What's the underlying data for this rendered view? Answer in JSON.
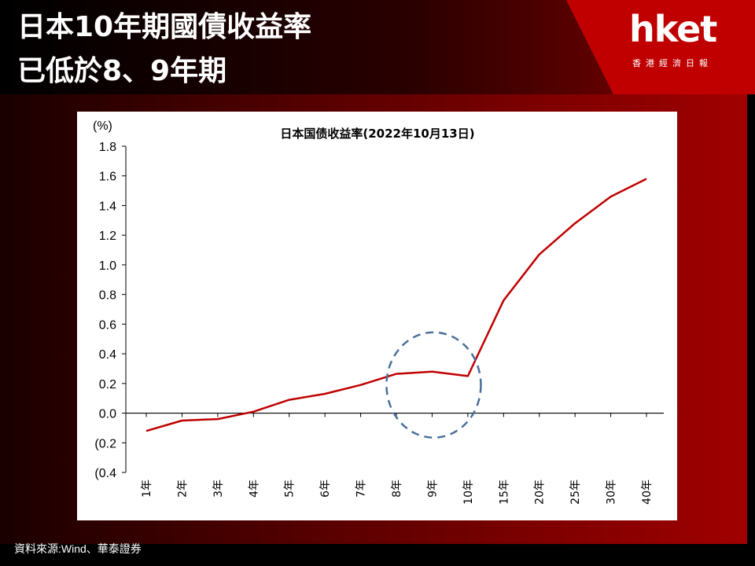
{
  "header": {
    "title_line1": "日本10年期國債收益率",
    "title_line2": "已低於8、9年期",
    "logo_main": "hket",
    "logo_sub": "香港經濟日報"
  },
  "source": "資料來源:Wind、華泰證券",
  "chart_data": {
    "type": "line",
    "title": "日本国债收益率(2022年10月13日)",
    "ylabel": "(%)",
    "xlabel": "",
    "categories": [
      "1年",
      "2年",
      "3年",
      "4年",
      "5年",
      "6年",
      "7年",
      "8年",
      "9年",
      "10年",
      "15年",
      "20年",
      "25年",
      "30年",
      "40年"
    ],
    "series": [
      {
        "values": [
          -0.12,
          -0.05,
          -0.04,
          0.01,
          0.09,
          0.13,
          0.19,
          0.265,
          0.28,
          0.25,
          0.76,
          1.07,
          1.28,
          1.46,
          1.58
        ]
      }
    ],
    "ylim": [
      -0.4,
      1.8
    ],
    "yticks": [
      1.8,
      1.6,
      1.4,
      1.2,
      1.0,
      0.8,
      0.6,
      0.4,
      0.2,
      0.0,
      -0.2,
      -0.4
    ],
    "ytick_labels": [
      "1.8",
      "1.6",
      "1.4",
      "1.2",
      "1.0",
      "0.8",
      "0.6",
      "0.4",
      "0.2",
      "0.0",
      "(0.2",
      "(0.4"
    ],
    "grid": false,
    "line_color": "#c00000",
    "annotation": {
      "type": "dashed-circle",
      "around": [
        "8年",
        "9年",
        "10年"
      ],
      "color": "#4a6f9a"
    }
  },
  "colors": {
    "accent": "#c00000",
    "background": "#000000"
  }
}
